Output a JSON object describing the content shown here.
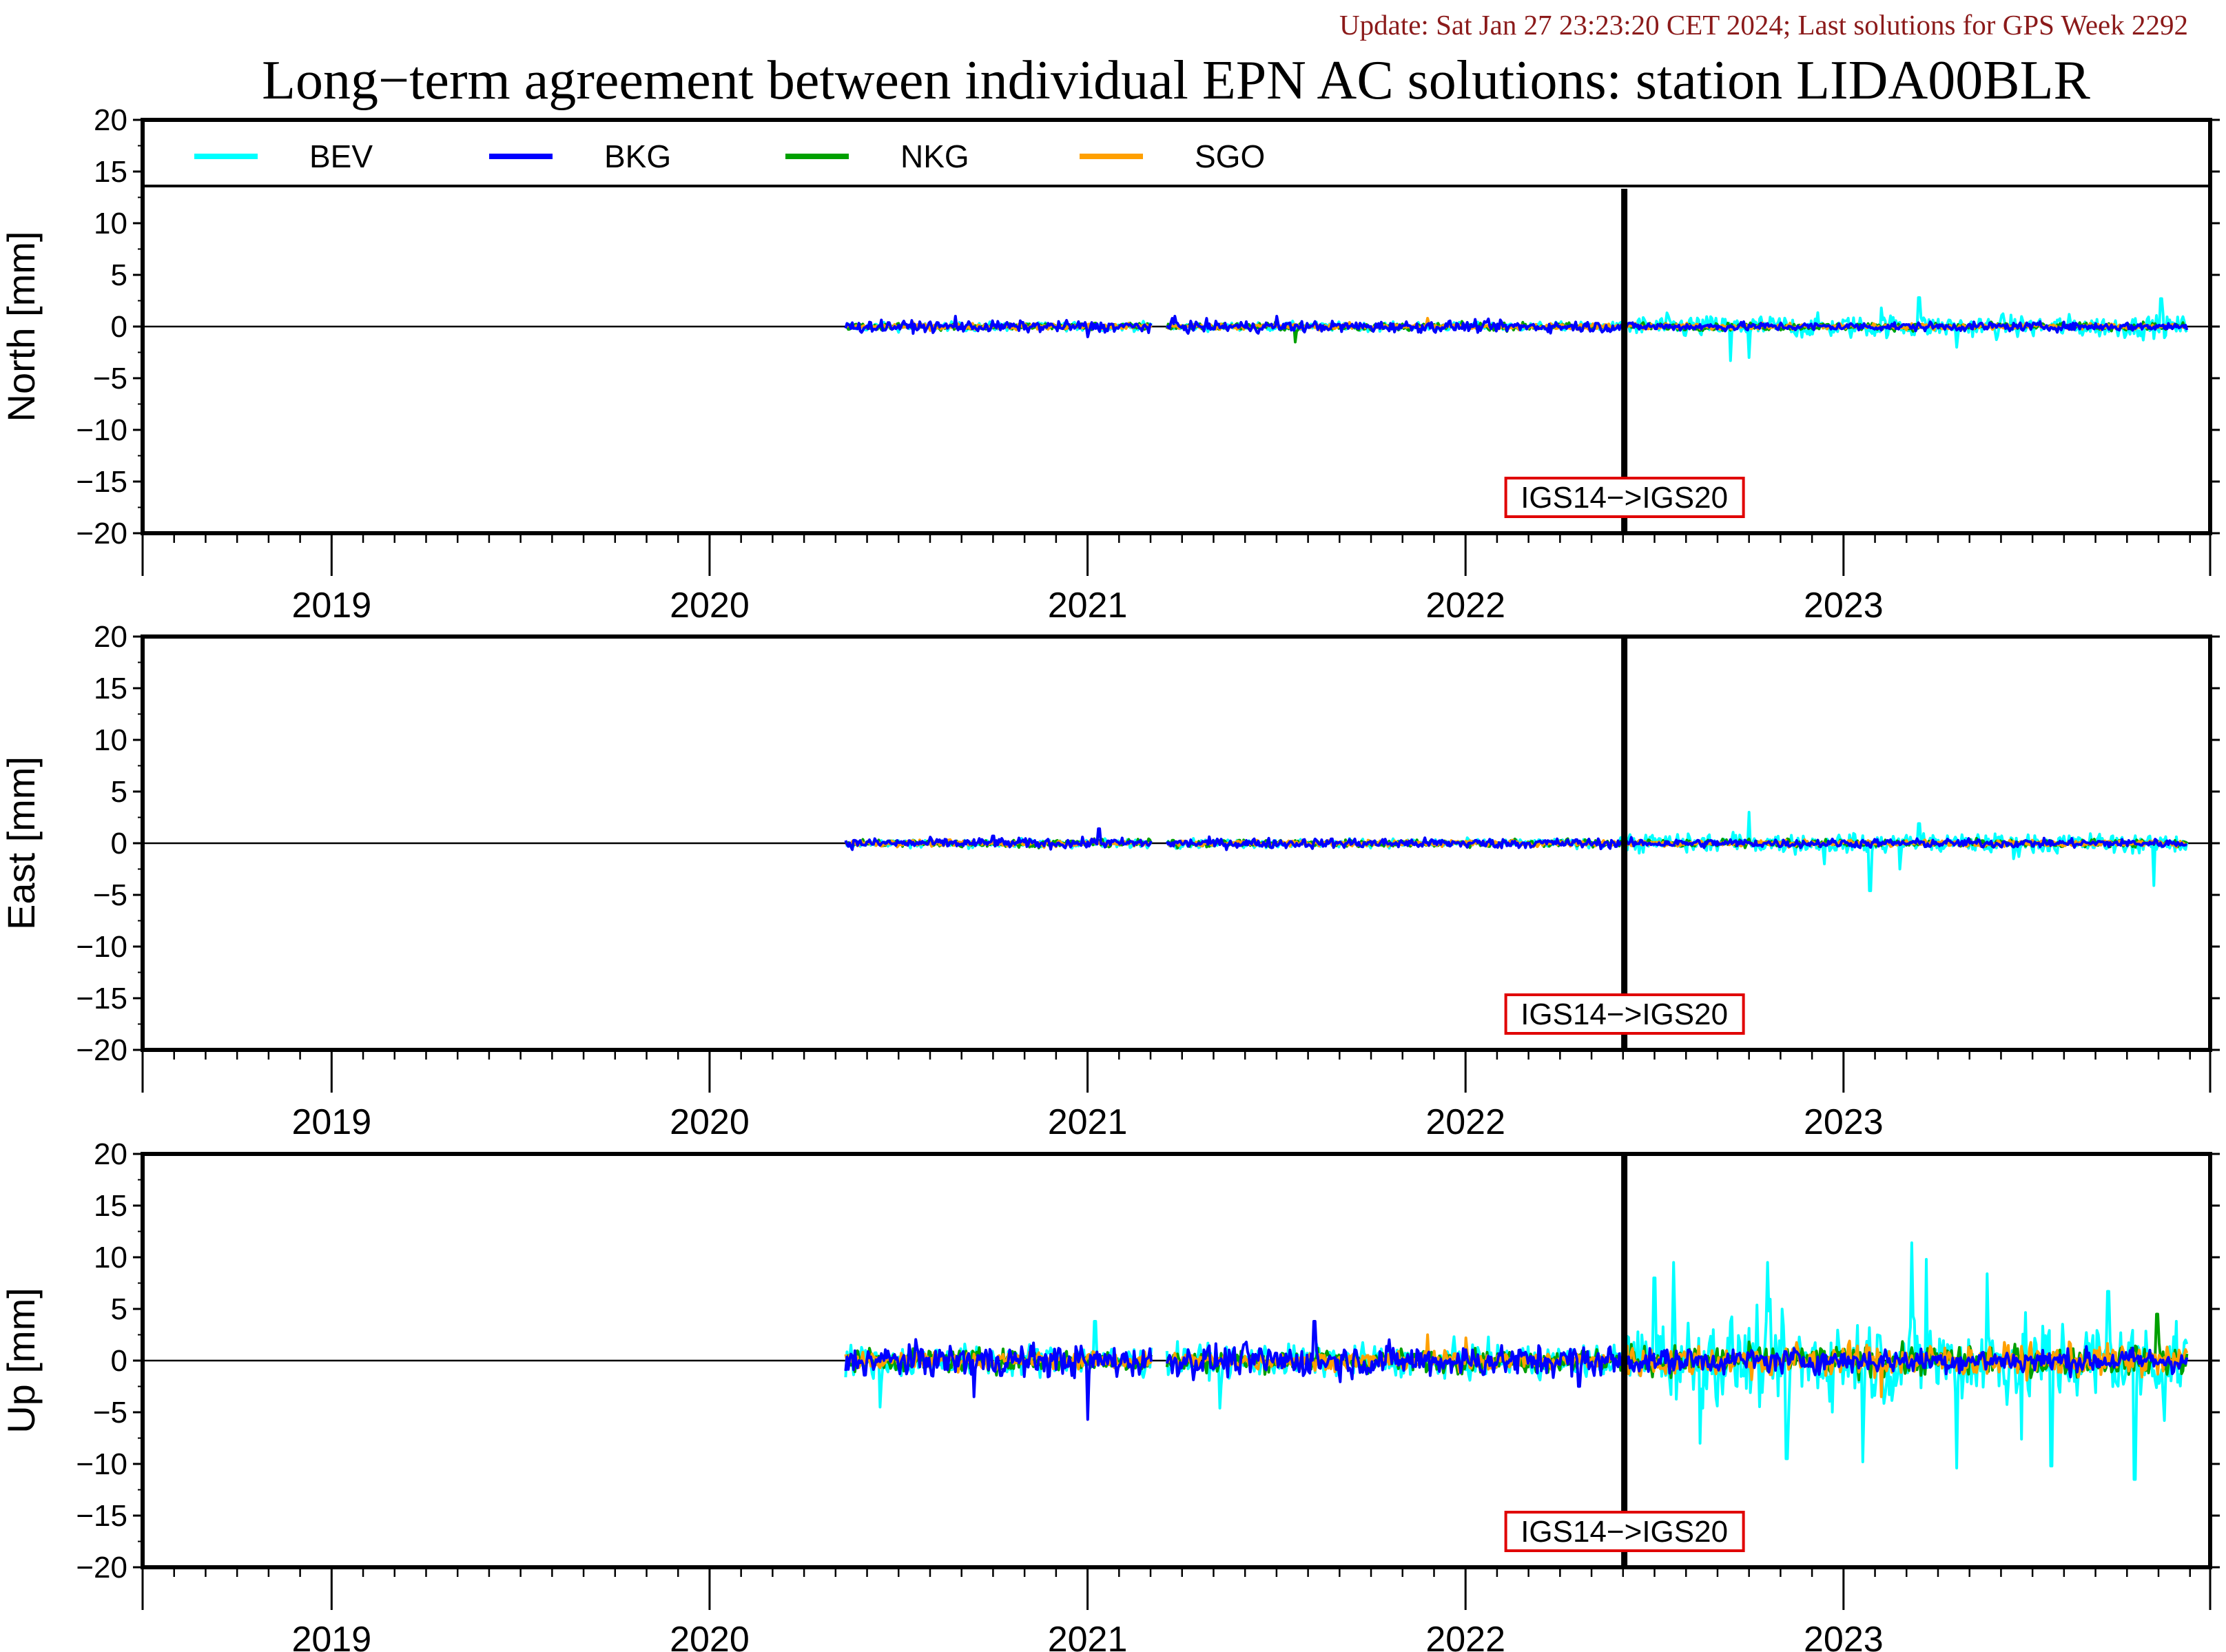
{
  "update_text": "Update: Sat Jan 27 23:23:20 CET 2024; Last solutions for GPS Week 2292",
  "colors": {
    "BEV": "#00ffff",
    "BKG": "#0000ff",
    "NKG": "#00a000",
    "SGO": "#ffa000",
    "axis": "#000000",
    "annotation_border": "#e00000",
    "update_text": "#8b1a1a"
  },
  "chart_data": {
    "type": "line",
    "title": "Long−term agreement between individual EPN AC solutions: station LIDA00BLR",
    "xlim": [
      2018.5,
      2023.97
    ],
    "ylim": [
      -20,
      20
    ],
    "yticks": [
      20,
      15,
      10,
      5,
      0,
      -5,
      -10,
      -15,
      -20
    ],
    "ytick_labels": [
      "20",
      "15",
      "10",
      "5",
      "0",
      "−5",
      "−10",
      "−15",
      "−20"
    ],
    "year_labels": [
      "2019",
      "2020",
      "2021",
      "2022",
      "2023"
    ],
    "data_span": [
      2020.36,
      2023.91
    ],
    "data_gap": [
      2021.17,
      2021.21
    ],
    "legend": [
      {
        "name": "BEV"
      },
      {
        "name": "BKG"
      },
      {
        "name": "NKG"
      },
      {
        "name": "SGO"
      }
    ],
    "legend_position": "top",
    "frame_change": {
      "x": 2022.42,
      "label": "IGS14−>IGS20"
    },
    "panels": [
      {
        "ylabel": "North [mm]",
        "legend_shown": true,
        "series": [
          {
            "name": "BEV",
            "noise_before": 0.35,
            "noise_after": 0.9,
            "spikes": [
              [
                2022.7,
                -3.3
              ],
              [
                2022.75,
                -3.0
              ],
              [
                2023.2,
                2.8
              ],
              [
                2023.3,
                -2.0
              ],
              [
                2023.84,
                2.7
              ],
              [
                2023.1,
                1.8
              ]
            ]
          },
          {
            "name": "BKG",
            "noise_before": 0.45,
            "noise_after": 0.35,
            "spikes": [
              [
                2020.65,
                1.0
              ],
              [
                2021.0,
                -1.0
              ],
              [
                2021.5,
                1.0
              ],
              [
                2021.23,
                1.0
              ]
            ]
          },
          {
            "name": "NKG",
            "noise_before": 0.3,
            "noise_after": 0.3,
            "spikes": [
              [
                2021.55,
                -1.5
              ]
            ]
          },
          {
            "name": "SGO",
            "noise_before": 0.25,
            "noise_after": 0.25,
            "spikes": [
              [
                2021.9,
                0.8
              ]
            ]
          }
        ]
      },
      {
        "ylabel": "East [mm]",
        "legend_shown": false,
        "series": [
          {
            "name": "BEV",
            "noise_before": 0.35,
            "noise_after": 0.8,
            "spikes": [
              [
                2022.75,
                3.0
              ],
              [
                2022.95,
                -2.0
              ],
              [
                2023.07,
                -4.6
              ],
              [
                2023.15,
                -2.5
              ],
              [
                2023.2,
                1.9
              ],
              [
                2023.82,
                -4.1
              ],
              [
                2023.45,
                -1.5
              ]
            ]
          },
          {
            "name": "BKG",
            "noise_before": 0.4,
            "noise_after": 0.35,
            "spikes": [
              [
                2021.03,
                1.4
              ],
              [
                2020.75,
                0.7
              ]
            ]
          },
          {
            "name": "NKG",
            "noise_before": 0.3,
            "noise_after": 0.3,
            "spikes": []
          },
          {
            "name": "SGO",
            "noise_before": 0.25,
            "noise_after": 0.25,
            "spikes": []
          }
        ]
      },
      {
        "ylabel": "Up [mm]",
        "legend_shown": false,
        "series": [
          {
            "name": "BEV",
            "noise_before": 1.3,
            "noise_after": 3.5,
            "spikes": [
              [
                2020.45,
                -4.5
              ],
              [
                2021.02,
                3.8
              ],
              [
                2021.35,
                -4.6
              ],
              [
                2022.5,
                8.0
              ],
              [
                2022.55,
                9.5
              ],
              [
                2022.62,
                -8.0
              ],
              [
                2022.8,
                9.5
              ],
              [
                2022.85,
                -9.5
              ],
              [
                2023.05,
                -9.8
              ],
              [
                2023.18,
                11.4
              ],
              [
                2023.22,
                9.8
              ],
              [
                2023.3,
                -10.4
              ],
              [
                2023.38,
                8.4
              ],
              [
                2023.47,
                -7.6
              ],
              [
                2023.55,
                -10.2
              ],
              [
                2023.7,
                6.7
              ],
              [
                2023.77,
                -11.5
              ],
              [
                2023.85,
                -5.8
              ]
            ]
          },
          {
            "name": "BKG",
            "noise_before": 1.3,
            "noise_after": 1.0,
            "spikes": [
              [
                2021.0,
                -5.7
              ],
              [
                2021.6,
                3.8
              ],
              [
                2020.7,
                -3.5
              ],
              [
                2022.3,
                -2.5
              ]
            ]
          },
          {
            "name": "NKG",
            "noise_before": 0.9,
            "noise_after": 1.2,
            "spikes": [
              [
                2023.83,
                4.5
              ]
            ]
          },
          {
            "name": "SGO",
            "noise_before": 0.7,
            "noise_after": 1.3,
            "spikes": [
              [
                2021.9,
                2.5
              ],
              [
                2022.0,
                2.2
              ],
              [
                2023.1,
                -3.5
              ]
            ]
          }
        ]
      }
    ]
  }
}
